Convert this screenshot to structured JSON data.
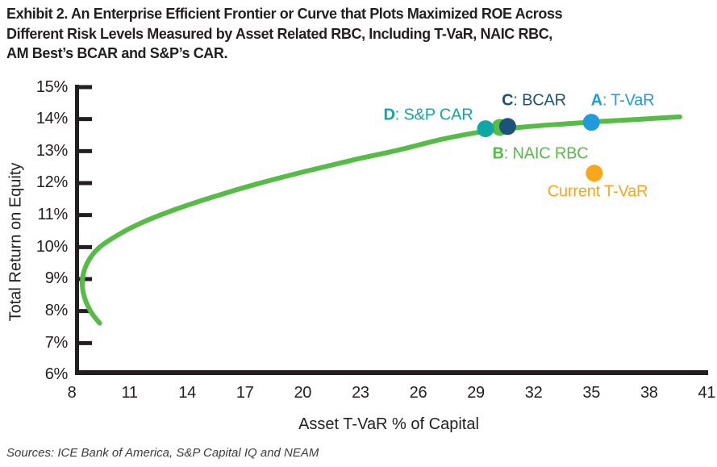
{
  "header": {
    "title_lines": [
      "Exhibit 2. An Enterprise Efficient Frontier or Curve that Plots Maximized ROE Across",
      "Different Risk Levels Measured by Asset Related RBC, Including T-VaR, NAIC RBC,",
      "AM Best’s BCAR and S&P’s CAR."
    ]
  },
  "footer": {
    "sources": "Sources: ICE Bank of America, S&P Capital IQ and NEAM"
  },
  "colors": {
    "text": "#231F20",
    "axis": "#231F20",
    "curve_green": "#57BB47",
    "teal": "#10A7A6",
    "navy": "#1B5379",
    "blue": "#1F9CD9",
    "orange": "#F8A71B"
  },
  "chart_data": {
    "type": "line",
    "title": "Enterprise Efficient Frontier: Maximized ROE across asset-risk (RBC) levels",
    "xlabel": "Asset T-VaR % of Capital",
    "ylabel": "Total Return on Equity",
    "xlim": [
      8,
      41
    ],
    "ylim": [
      6,
      15
    ],
    "x_ticks": [
      8,
      11,
      14,
      17,
      20,
      23,
      26,
      29,
      32,
      35,
      38,
      41
    ],
    "y_ticks": [
      15,
      14,
      13,
      12,
      11,
      10,
      9,
      8,
      7,
      6
    ],
    "y_tick_suffix": "%",
    "grid": false,
    "legend": "none",
    "series": [
      {
        "name": "Efficient Frontier",
        "color": "#57BB47",
        "points": [
          [
            9.45,
            7.62
          ],
          [
            9.0,
            7.97
          ],
          [
            8.65,
            8.45
          ],
          [
            8.55,
            8.95
          ],
          [
            8.8,
            9.5
          ],
          [
            9.4,
            9.97
          ],
          [
            10.4,
            10.38
          ],
          [
            11.7,
            10.78
          ],
          [
            13.4,
            11.18
          ],
          [
            15.4,
            11.58
          ],
          [
            17.6,
            11.97
          ],
          [
            20.1,
            12.36
          ],
          [
            22.6,
            12.72
          ],
          [
            25.1,
            13.05
          ],
          [
            27.3,
            13.38
          ],
          [
            29.5,
            13.62
          ],
          [
            31.6,
            13.76
          ],
          [
            33.6,
            13.85
          ],
          [
            35.6,
            13.93
          ],
          [
            37.6,
            14.0
          ],
          [
            39.6,
            14.07
          ]
        ]
      }
    ],
    "points": [
      {
        "id": "B",
        "letter": "B",
        "name": "NAIC RBC",
        "x": 30.25,
        "y": 13.74,
        "color": "#57BB47"
      },
      {
        "id": "D",
        "letter": "D",
        "name": "S&P CAR",
        "x": 29.5,
        "y": 13.7,
        "color": "#10A7A6"
      },
      {
        "id": "C",
        "letter": "C",
        "name": "BCAR",
        "x": 30.65,
        "y": 13.77,
        "color": "#1B5379"
      },
      {
        "id": "A",
        "letter": "A",
        "name": "T-VaR",
        "x": 35.0,
        "y": 13.9,
        "color": "#1F9CD9"
      },
      {
        "id": "current",
        "name": "Current T-VaR",
        "x": 35.15,
        "y": 12.31,
        "color": "#F8A71B"
      }
    ]
  }
}
